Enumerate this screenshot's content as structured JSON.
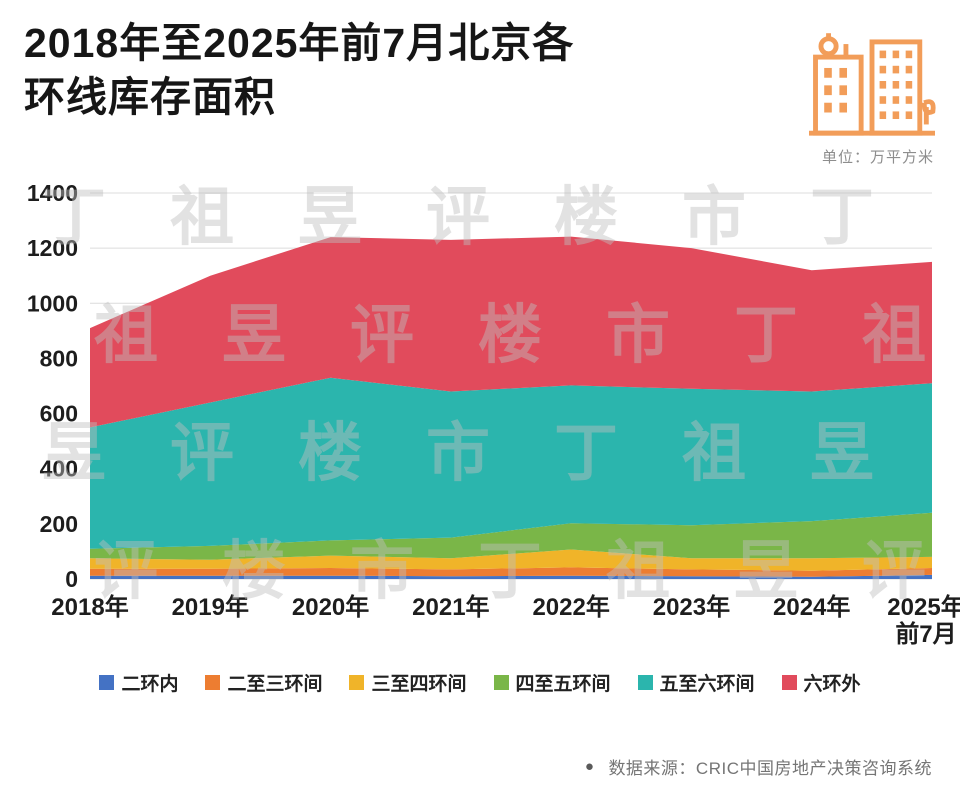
{
  "header": {
    "title_line1": "2018年至2025年前7月北京各",
    "title_line2": "环线库存面积",
    "unit_label": "单位：万平方米"
  },
  "watermark": {
    "text": "丁祖昱评楼市"
  },
  "chart_data": {
    "type": "area",
    "stacked": true,
    "title": "2018年至2025年前7月北京各环线库存面积",
    "unit": "万平方米",
    "categories": [
      "2018年",
      "2019年",
      "2020年",
      "2021年",
      "2022年",
      "2023年",
      "2024年",
      "2025年前7月"
    ],
    "x_tick_lines": [
      [
        "2018年"
      ],
      [
        "2019年"
      ],
      [
        "2020年"
      ],
      [
        "2021年"
      ],
      [
        "2022年"
      ],
      [
        "2023年"
      ],
      [
        "2024年"
      ],
      [
        "2025年",
        "前7月"
      ]
    ],
    "ylim": [
      0,
      1400
    ],
    "yticks": [
      0,
      200,
      400,
      600,
      800,
      1000,
      1200,
      1400
    ],
    "grid": true,
    "legend_position": "bottom",
    "series": [
      {
        "name": "二环内",
        "color": "#4472c4",
        "values": [
          12,
          12,
          12,
          10,
          12,
          10,
          8,
          15
        ]
      },
      {
        "name": "二至三环间",
        "color": "#ed7d31",
        "values": [
          25,
          25,
          28,
          25,
          30,
          25,
          22,
          25
        ]
      },
      {
        "name": "三至四环间",
        "color": "#f0b429",
        "values": [
          38,
          33,
          45,
          40,
          65,
          40,
          45,
          40
        ]
      },
      {
        "name": "四至五环间",
        "color": "#7ab648",
        "values": [
          35,
          50,
          55,
          75,
          95,
          120,
          135,
          160
        ]
      },
      {
        "name": "五至六环间",
        "color": "#2bb5ad",
        "values": [
          440,
          520,
          590,
          530,
          500,
          495,
          470,
          470
        ]
      },
      {
        "name": "六环外",
        "color": "#e14b5c",
        "values": [
          360,
          460,
          510,
          550,
          540,
          510,
          440,
          440
        ]
      }
    ]
  },
  "footer": {
    "bullet": "●",
    "source": "数据来源：CRIC中国房地产决策咨询系统"
  }
}
